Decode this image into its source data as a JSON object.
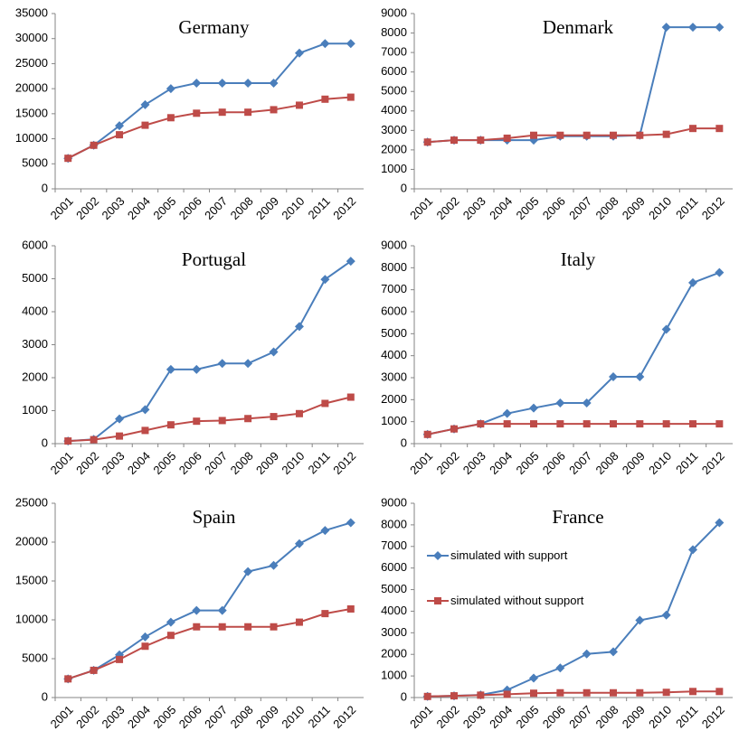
{
  "chart_data": [
    {
      "type": "line",
      "title": "Germany",
      "categories": [
        "2001",
        "2002",
        "2003",
        "2004",
        "2005",
        "2006",
        "2007",
        "2008",
        "2009",
        "2010",
        "2011",
        "2012"
      ],
      "series": [
        {
          "color": "#4a7ebb",
          "values": [
            6100,
            8700,
            12600,
            16800,
            20000,
            21100,
            21100,
            21100,
            21100,
            27100,
            29000,
            29000
          ]
        },
        {
          "color": "#be4b48",
          "values": [
            6100,
            8700,
            10800,
            12700,
            14200,
            15100,
            15300,
            15300,
            15800,
            16700,
            17900,
            18300
          ]
        }
      ],
      "ylim": [
        0,
        35000
      ],
      "yticks": [
        0,
        5000,
        10000,
        15000,
        20000,
        25000,
        30000,
        35000
      ]
    },
    {
      "type": "line",
      "title": "Denmark",
      "categories": [
        "2001",
        "2002",
        "2003",
        "2004",
        "2005",
        "2006",
        "2007",
        "2008",
        "2009",
        "2010",
        "2011",
        "2012"
      ],
      "series": [
        {
          "color": "#4a7ebb",
          "values": [
            2400,
            2500,
            2500,
            2500,
            2500,
            2700,
            2700,
            2700,
            2750,
            8300,
            8300,
            8300
          ]
        },
        {
          "color": "#be4b48",
          "values": [
            2400,
            2500,
            2500,
            2600,
            2750,
            2750,
            2750,
            2750,
            2750,
            2800,
            3100,
            3100
          ]
        }
      ],
      "ylim": [
        0,
        9000
      ],
      "yticks": [
        0,
        1000,
        2000,
        3000,
        4000,
        5000,
        6000,
        7000,
        8000,
        9000
      ]
    },
    {
      "type": "line",
      "title": "Portugal",
      "categories": [
        "2001",
        "2002",
        "2003",
        "2004",
        "2005",
        "2006",
        "2007",
        "2008",
        "2009",
        "2010",
        "2011",
        "2012"
      ],
      "series": [
        {
          "color": "#4a7ebb",
          "values": [
            80,
            130,
            750,
            1030,
            2250,
            2250,
            2430,
            2430,
            2780,
            3550,
            4980,
            5530
          ]
        },
        {
          "color": "#be4b48",
          "values": [
            80,
            120,
            230,
            400,
            570,
            680,
            700,
            760,
            820,
            910,
            1220,
            1410
          ]
        }
      ],
      "ylim": [
        0,
        6000
      ],
      "yticks": [
        0,
        1000,
        2000,
        3000,
        4000,
        5000,
        6000
      ]
    },
    {
      "type": "line",
      "title": "Italy",
      "categories": [
        "2001",
        "2002",
        "2003",
        "2004",
        "2005",
        "2006",
        "2007",
        "2008",
        "2009",
        "2010",
        "2011",
        "2012"
      ],
      "series": [
        {
          "color": "#4a7ebb",
          "values": [
            420,
            670,
            900,
            1370,
            1620,
            1850,
            1850,
            3040,
            3040,
            5200,
            7320,
            7780
          ]
        },
        {
          "color": "#be4b48",
          "values": [
            420,
            670,
            900,
            900,
            900,
            900,
            900,
            900,
            900,
            900,
            900,
            900
          ]
        }
      ],
      "ylim": [
        0,
        9000
      ],
      "yticks": [
        0,
        1000,
        2000,
        3000,
        4000,
        5000,
        6000,
        7000,
        8000,
        9000
      ]
    },
    {
      "type": "line",
      "title": "Spain",
      "categories": [
        "2001",
        "2002",
        "2003",
        "2004",
        "2005",
        "2006",
        "2007",
        "2008",
        "2009",
        "2010",
        "2011",
        "2012"
      ],
      "series": [
        {
          "color": "#4a7ebb",
          "values": [
            2400,
            3500,
            5500,
            7800,
            9700,
            11200,
            11200,
            16200,
            17000,
            19800,
            21500,
            22500
          ]
        },
        {
          "color": "#be4b48",
          "values": [
            2400,
            3500,
            4900,
            6600,
            8000,
            9100,
            9100,
            9100,
            9100,
            9700,
            10800,
            11400
          ]
        }
      ],
      "ylim": [
        0,
        25000
      ],
      "yticks": [
        0,
        5000,
        10000,
        15000,
        20000,
        25000
      ]
    },
    {
      "type": "line",
      "title": "France",
      "categories": [
        "2001",
        "2002",
        "2003",
        "2004",
        "2005",
        "2006",
        "2007",
        "2008",
        "2009",
        "2010",
        "2011",
        "2012"
      ],
      "series": [
        {
          "name": "simulated with support",
          "color": "#4a7ebb",
          "values": [
            50,
            80,
            120,
            350,
            900,
            1370,
            2020,
            2120,
            3580,
            3820,
            6850,
            8100
          ]
        },
        {
          "name": "simulated without support",
          "color": "#be4b48",
          "values": [
            50,
            80,
            110,
            150,
            200,
            220,
            220,
            220,
            220,
            240,
            280,
            280
          ]
        }
      ],
      "ylim": [
        0,
        9000
      ],
      "yticks": [
        0,
        1000,
        2000,
        3000,
        4000,
        5000,
        6000,
        7000,
        8000,
        9000
      ],
      "legend": "left"
    }
  ]
}
